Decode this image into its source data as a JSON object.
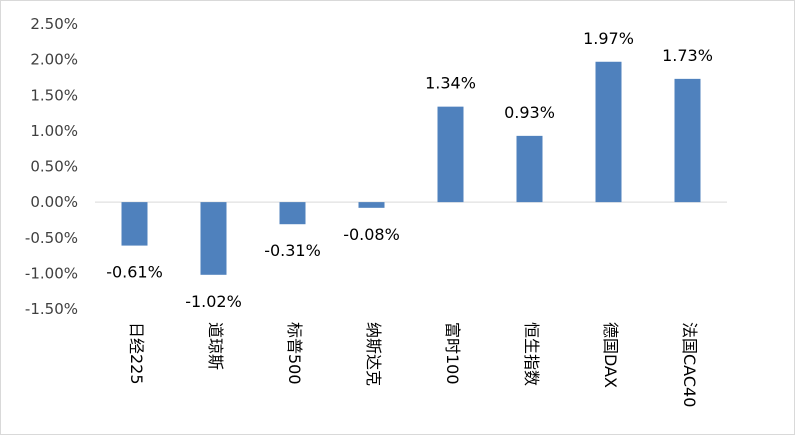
{
  "chart_data": {
    "type": "bar",
    "categories": [
      "日经225",
      "道琼斯",
      "标普500",
      "纳斯达克",
      "富时100",
      "恒生指数",
      "德国DAX",
      "法国CAC40"
    ],
    "values": [
      -0.61,
      -1.02,
      -0.31,
      -0.08,
      1.34,
      0.93,
      1.97,
      1.73
    ],
    "data_labels": [
      "-0.61%",
      "-1.02%",
      "-0.31%",
      "-0.08%",
      "1.34%",
      "0.93%",
      "1.97%",
      "1.73%"
    ],
    "yticks": [
      2.5,
      2.0,
      1.5,
      1.0,
      0.5,
      0.0,
      -0.5,
      -1.0,
      -1.5
    ],
    "ytick_labels": [
      "2.50%",
      "2.00%",
      "1.50%",
      "1.00%",
      "0.50%",
      "0.00%",
      "-0.50%",
      "-1.00%",
      "-1.50%"
    ],
    "ylim": [
      -1.5,
      2.5
    ],
    "title": "",
    "xlabel": "",
    "ylabel": "",
    "grid": false,
    "legend": "none",
    "bar_color": "#4f81bd",
    "axis_color": "#d9d9d9",
    "category_label_orientation": "vertical-rotated"
  }
}
